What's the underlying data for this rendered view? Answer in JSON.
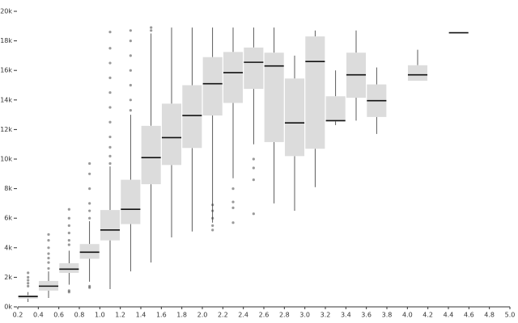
{
  "chart_data": {
    "type": "box",
    "xlim": [
      0.2,
      5.0
    ],
    "xticks": [
      0.2,
      0.4,
      0.6,
      0.8,
      {
        "value": 1,
        "label": "1.0"
      },
      1.2,
      1.4,
      1.6,
      1.8,
      {
        "value": 2,
        "label": "2.0"
      },
      2.2,
      2.4,
      2.6,
      2.8,
      {
        "value": 3,
        "label": "3.0"
      },
      3.2,
      3.4,
      3.6,
      3.8,
      {
        "value": 4,
        "label": "4.0"
      },
      4.2,
      4.4,
      4.6,
      4.8,
      {
        "value": 5,
        "label": "5.0"
      }
    ],
    "ylim": [
      0,
      20000
    ],
    "yticks": [
      {
        "value": 0,
        "label": "0k"
      },
      {
        "value": 2000,
        "label": "2k"
      },
      {
        "value": 4000,
        "label": "4k"
      },
      {
        "value": 6000,
        "label": "6k"
      },
      {
        "value": 8000,
        "label": "8k"
      },
      {
        "value": 10000,
        "label": "10k"
      },
      {
        "value": 12000,
        "label": "12k"
      },
      {
        "value": 14000,
        "label": "14k"
      },
      {
        "value": 16000,
        "label": "16k"
      },
      {
        "value": 18000,
        "label": "18k"
      },
      {
        "value": 20000,
        "label": "20k"
      }
    ],
    "color": "#dcdcdc",
    "boxes": [
      {
        "x": 0.3,
        "whislo": 330,
        "q1": 560,
        "med": 700,
        "q3": 790,
        "whishi": 1000,
        "fliers": [
          1400,
          1600,
          1800,
          2000,
          2300
        ]
      },
      {
        "x": 0.5,
        "whislo": 600,
        "q1": 1100,
        "med": 1400,
        "q3": 1750,
        "whishi": 2400,
        "fliers": [
          2600,
          3000,
          3300,
          3600,
          4000,
          4500,
          4900
        ]
      },
      {
        "x": 0.7,
        "whislo": 1500,
        "q1": 2300,
        "med": 2550,
        "q3": 2950,
        "whishi": 3800,
        "fliers": [
          1000,
          1100,
          4200,
          4500,
          5000,
          5500,
          6000,
          6600
        ]
      },
      {
        "x": 0.9,
        "whislo": 1700,
        "q1": 3250,
        "med": 3700,
        "q3": 4250,
        "whishi": 5800,
        "fliers": [
          1300,
          1400,
          6000,
          6500,
          7000,
          8000,
          9000,
          9700
        ]
      },
      {
        "x": 1.1,
        "whislo": 1200,
        "q1": 4500,
        "med": 5200,
        "q3": 6550,
        "whishi": 9500,
        "fliers": [
          9700,
          10200,
          10800,
          11500,
          12500,
          13500,
          14500,
          15500,
          16500,
          17500,
          18600
        ]
      },
      {
        "x": 1.3,
        "whislo": 2400,
        "q1": 5600,
        "med": 6600,
        "q3": 8600,
        "whishi": 13000,
        "fliers": [
          13300,
          14000,
          15000,
          16000,
          17000,
          18000,
          18700
        ]
      },
      {
        "x": 1.5,
        "whislo": 3000,
        "q1": 8300,
        "med": 10100,
        "q3": 12250,
        "whishi": 18500,
        "fliers": [
          18700,
          18900
        ]
      },
      {
        "x": 1.7,
        "whislo": 4700,
        "q1": 9600,
        "med": 11450,
        "q3": 13750,
        "whishi": 18900,
        "fliers": []
      },
      {
        "x": 1.9,
        "whislo": 5100,
        "q1": 10750,
        "med": 12950,
        "q3": 15000,
        "whishi": 18900,
        "fliers": []
      },
      {
        "x": 2.1,
        "whislo": 5700,
        "q1": 12950,
        "med": 15100,
        "q3": 16900,
        "whishi": 18900,
        "fliers": [
          5200,
          5500,
          6000,
          6500,
          6900
        ]
      },
      {
        "x": 2.3,
        "whislo": 8700,
        "q1": 13800,
        "med": 15850,
        "q3": 17250,
        "whishi": 18900,
        "fliers": [
          5700,
          6700,
          7100,
          8000
        ]
      },
      {
        "x": 2.5,
        "whislo": 11000,
        "q1": 14750,
        "med": 16550,
        "q3": 17550,
        "whishi": 18900,
        "fliers": [
          6300,
          8600,
          9400,
          10000
        ]
      },
      {
        "x": 2.7,
        "whislo": 7000,
        "q1": 11150,
        "med": 16300,
        "q3": 17200,
        "whishi": 18900,
        "fliers": []
      },
      {
        "x": 2.9,
        "whislo": 6500,
        "q1": 10200,
        "med": 12450,
        "q3": 15450,
        "whishi": 17000,
        "fliers": []
      },
      {
        "x": 3.1,
        "whislo": 8100,
        "q1": 10700,
        "med": 16600,
        "q3": 18300,
        "whishi": 18700,
        "fliers": []
      },
      {
        "x": 3.3,
        "whislo": 12300,
        "q1": 12550,
        "med": 12600,
        "q3": 14250,
        "whishi": 16000,
        "fliers": []
      },
      {
        "x": 3.5,
        "whislo": 12600,
        "q1": 14150,
        "med": 15700,
        "q3": 17200,
        "whishi": 18700,
        "fliers": []
      },
      {
        "x": 3.7,
        "whislo": 11700,
        "q1": 12850,
        "med": 13950,
        "q3": 15050,
        "whishi": 16200,
        "fliers": []
      },
      {
        "x": 4.1,
        "whislo": 15300,
        "q1": 15300,
        "med": 15700,
        "q3": 16350,
        "whishi": 17400,
        "fliers": []
      },
      {
        "x": 4.5,
        "whislo": 18550,
        "q1": 18550,
        "med": 18550,
        "q3": 18550,
        "whishi": 18550,
        "fliers": []
      }
    ]
  }
}
